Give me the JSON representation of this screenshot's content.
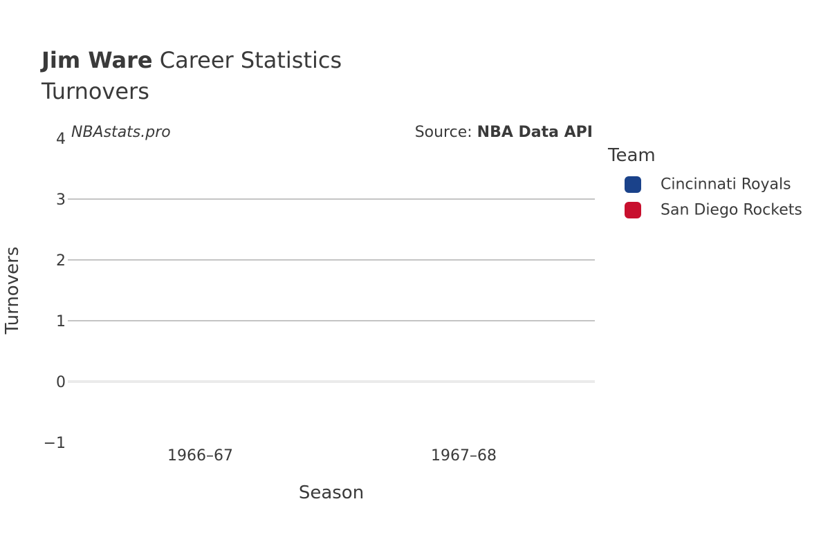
{
  "title_bold": "Jim Ware",
  "title_rest": "Career Statistics",
  "subtitle": "Turnovers",
  "watermark": "NBAstats.pro",
  "source_prefix": "Source: ",
  "source_name": "NBA Data API",
  "legend": {
    "title": "Team",
    "items": [
      {
        "label": "Cincinnati Royals",
        "color": "#1a428a"
      },
      {
        "label": "San Diego Rockets",
        "color": "#c8102e"
      }
    ]
  },
  "chart_data": {
    "type": "bar",
    "categories": [
      "1966–67",
      "1967–68"
    ],
    "series": [
      {
        "name": "Cincinnati Royals",
        "values": [
          null,
          null
        ]
      },
      {
        "name": "San Diego Rockets",
        "values": [
          null,
          null
        ]
      }
    ],
    "xlabel": "Season",
    "ylabel": "Turnovers",
    "ylim": [
      -1,
      4
    ],
    "yticks": [
      4,
      3,
      2,
      1,
      0,
      -1
    ],
    "ytick_labels": [
      "4",
      "3",
      "2",
      "1",
      "0",
      "−1"
    ],
    "grid": true
  }
}
